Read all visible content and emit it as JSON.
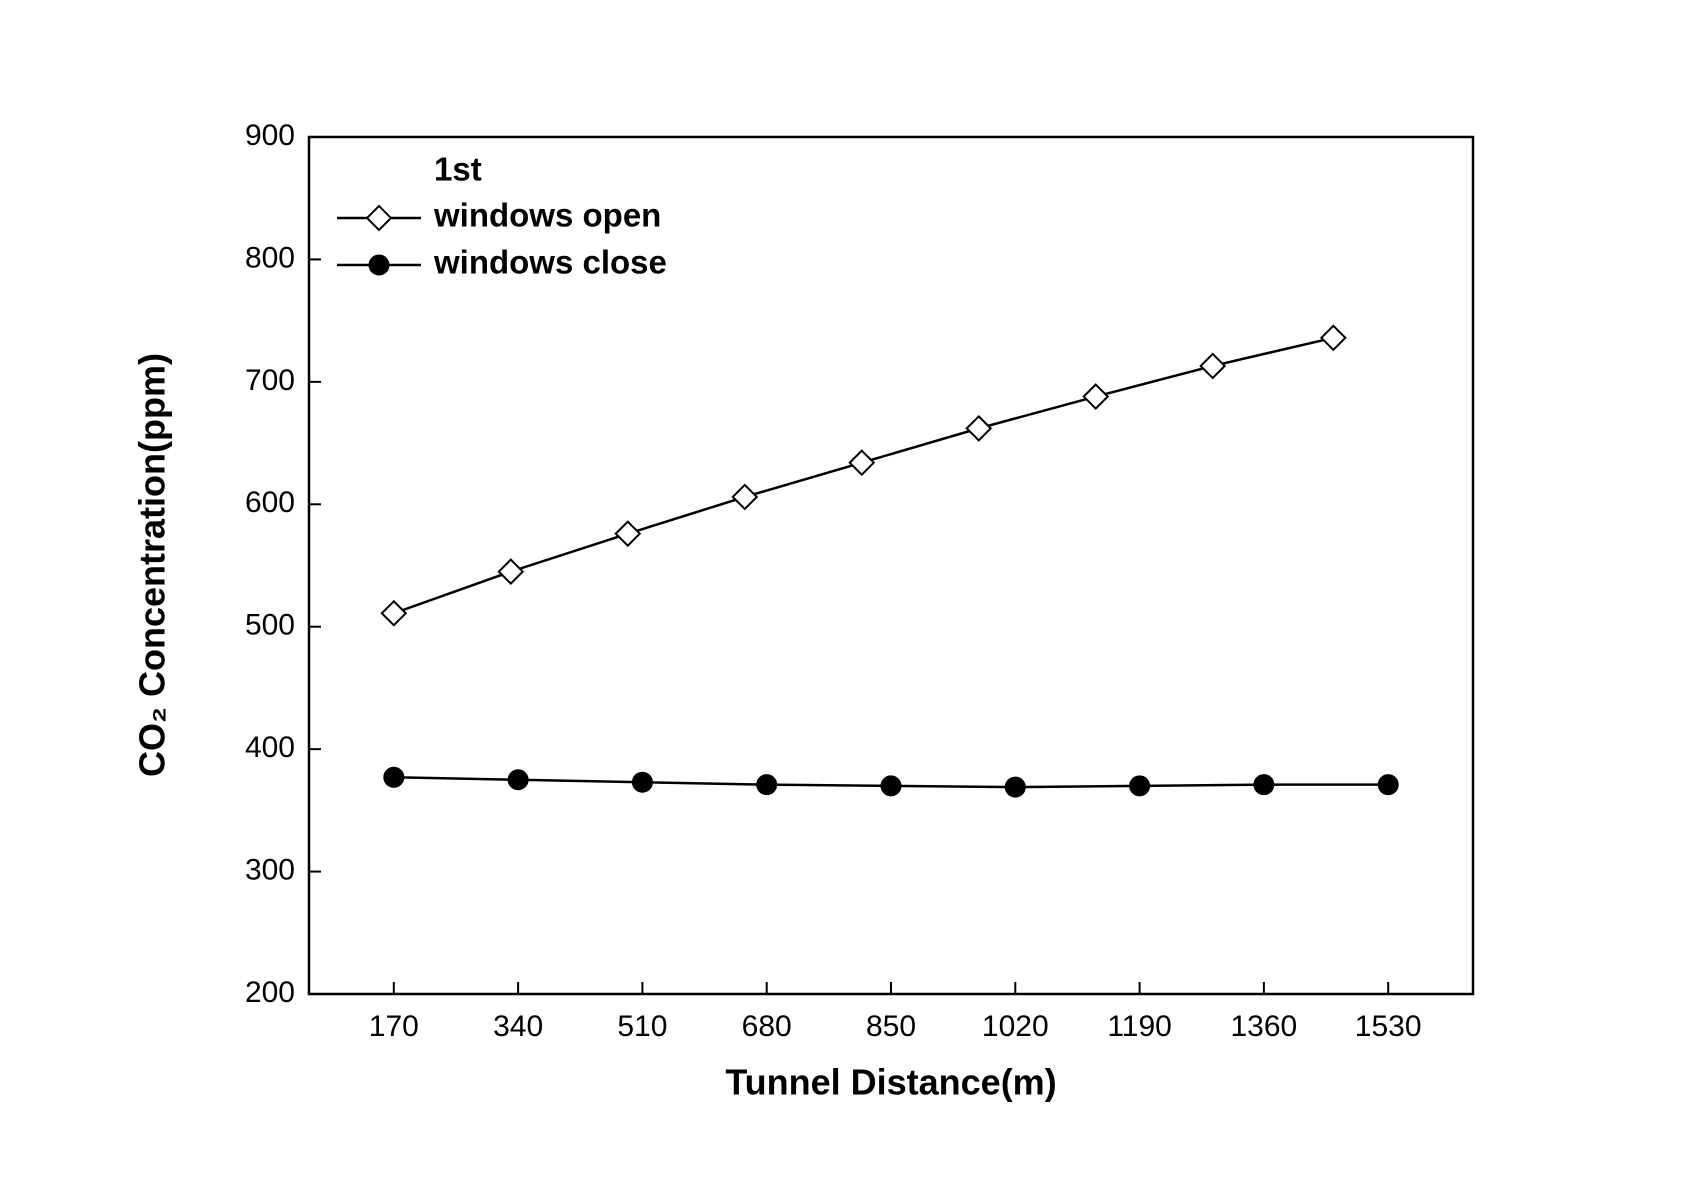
{
  "chart_data": {
    "type": "line",
    "x_label": "Tunnel Distance(m)",
    "y_label": "CO₂ Concentration(ppm)",
    "legend_title": "1st",
    "legend_position": "upper left",
    "xlim": [
      54,
      1646
    ],
    "xticks": [
      170,
      340,
      510,
      680,
      850,
      1020,
      1190,
      1360,
      1530
    ],
    "ylim": [
      200,
      900
    ],
    "yticks": [
      200,
      300,
      400,
      500,
      600,
      700,
      800,
      900
    ],
    "series": [
      {
        "name": "windows open",
        "color": "#000000",
        "marker": "open-diamond",
        "x": [
          170,
          330,
          490,
          650,
          810,
          970,
          1130,
          1290,
          1455
        ],
        "values": [
          511,
          545,
          576,
          606,
          634,
          662,
          688,
          713,
          736
        ]
      },
      {
        "name": "windows close",
        "color": "#000000",
        "marker": "filled-circle",
        "x": [
          170,
          340,
          510,
          680,
          850,
          1020,
          1190,
          1360,
          1530
        ],
        "values": [
          377,
          375,
          373,
          371,
          370,
          369,
          370,
          371,
          371
        ]
      }
    ]
  }
}
